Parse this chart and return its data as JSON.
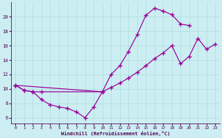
{
  "bg_color": "#cceef2",
  "grid_color": "#aadddd",
  "line_color": "#990099",
  "xlabel": "Windchill (Refroidissement éolien,°C)",
  "xlim": [
    -0.5,
    23.5
  ],
  "ylim": [
    5.2,
    22.0
  ],
  "xticks": [
    0,
    1,
    2,
    3,
    4,
    5,
    6,
    7,
    8,
    9,
    10,
    11,
    12,
    13,
    14,
    15,
    16,
    17,
    18,
    19,
    20,
    21,
    22,
    23
  ],
  "yticks": [
    6,
    8,
    10,
    12,
    14,
    16,
    18,
    20
  ],
  "curve1_x": [
    0,
    1,
    2,
    3,
    4,
    5,
    6,
    7,
    8,
    9,
    10
  ],
  "curve1_y": [
    10.5,
    9.8,
    9.6,
    8.5,
    7.8,
    7.5,
    7.3,
    6.8,
    6.0,
    7.5,
    9.6
  ],
  "curve2_x": [
    0,
    1,
    2,
    3,
    10,
    11,
    12,
    13,
    14,
    15,
    16,
    17,
    18,
    19,
    20
  ],
  "curve2_y": [
    10.5,
    9.8,
    9.6,
    9.6,
    9.6,
    12.0,
    13.2,
    15.2,
    17.5,
    20.2,
    21.2,
    20.8,
    20.3,
    19.0,
    18.8
  ],
  "curve3_x": [
    0,
    10,
    11,
    12,
    13,
    14,
    15,
    16,
    17,
    18,
    19,
    20,
    21,
    22,
    23
  ],
  "curve3_y": [
    10.5,
    9.6,
    10.2,
    10.8,
    11.5,
    12.3,
    13.2,
    14.2,
    15.0,
    16.0,
    13.5,
    14.5,
    17.0,
    15.5,
    16.2
  ]
}
